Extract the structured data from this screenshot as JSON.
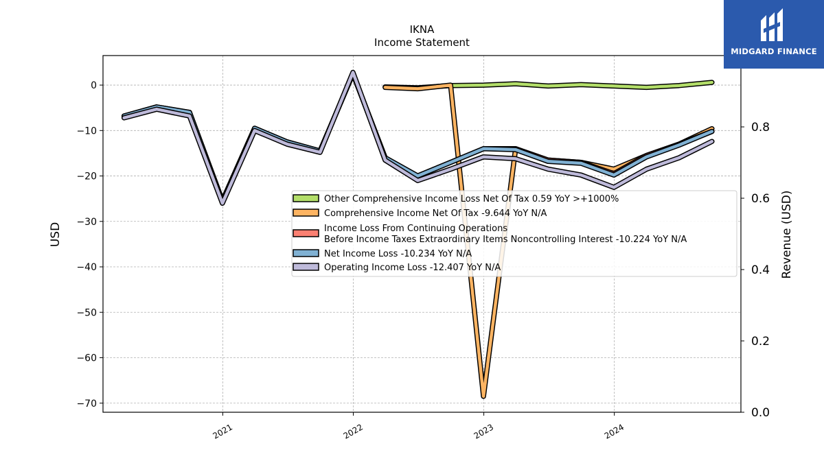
{
  "chart_data": {
    "type": "line",
    "title": "IKNA",
    "subtitle": "Income Statement",
    "ylabel": "USD",
    "ylabel_right": "Revenue (USD)",
    "ylim": [
      -72,
      6.5
    ],
    "ylim_right": [
      0,
      1.0
    ],
    "yticks": [
      0,
      -10,
      -20,
      -30,
      -40,
      -50,
      -60,
      -70
    ],
    "yticks_right": [
      0.0,
      0.2,
      0.4,
      0.6,
      0.8
    ],
    "xlim": [
      "2020-02-01",
      "2024-12-20"
    ],
    "xticks": [
      {
        "date": "2021-01-01",
        "label": "2021"
      },
      {
        "date": "2022-01-01",
        "label": "2022"
      },
      {
        "date": "2023-01-01",
        "label": "2023"
      },
      {
        "date": "2024-01-01",
        "label": "2024"
      }
    ],
    "grid": true,
    "legend_position": "center-right",
    "series": [
      {
        "name": "Other Comprehensive Income Loss Net Of Tax",
        "legend_label": "Other Comprehensive Income Loss Net Of Tax  0.59 YoY >+1000%",
        "color": "#b3de69",
        "x": [
          "2022-03-31",
          "2022-06-30",
          "2022-09-30",
          "2022-12-31",
          "2023-03-31",
          "2023-06-30",
          "2023-09-30",
          "2023-12-31",
          "2024-03-31",
          "2024-06-30",
          "2024-09-30"
        ],
        "y": [
          -0.4,
          -0.6,
          -0.1,
          0.0,
          0.3,
          -0.2,
          0.1,
          -0.2,
          -0.5,
          -0.1,
          0.6
        ]
      },
      {
        "name": "Comprehensive Income Net Of Tax",
        "legend_label": "Comprehensive Income Net Of Tax  -9.644 YoY N/A",
        "color": "#fdb462",
        "x": [
          "2022-03-31",
          "2022-06-30",
          "2022-09-30",
          "2022-12-31",
          "2023-03-31",
          "2023-06-30",
          "2023-09-30",
          "2023-12-31",
          "2024-03-31",
          "2024-06-30",
          "2024-09-30"
        ],
        "y": [
          -0.5,
          -0.8,
          0.0,
          -68.5,
          -14.0,
          -16.5,
          -17.0,
          -18.5,
          -15.5,
          -13.0,
          -9.6
        ]
      },
      {
        "name": "Income Loss From Continuing Operations Before Income Taxes Extraordinary Items Noncontrolling Interest",
        "legend_label": "Income Loss From Continuing Operations\nBefore Income Taxes Extraordinary Items Noncontrolling Interest  -10.224 YoY N/A",
        "color": "#fb8072",
        "x": [
          "2020-03-31",
          "2020-06-30",
          "2020-09-30",
          "2020-12-31",
          "2021-03-31",
          "2021-06-30",
          "2021-09-30",
          "2021-12-31",
          "2022-03-31",
          "2022-06-30",
          "2022-09-30",
          "2022-12-31",
          "2023-03-31",
          "2023-06-30",
          "2023-09-30",
          "2023-12-31",
          "2024-03-31",
          "2024-06-30",
          "2024-09-30"
        ],
        "y": [
          -6.8,
          -4.8,
          -6.0,
          -25.5,
          -9.5,
          -12.5,
          -14.5,
          2.5,
          -16.0,
          -20.0,
          -17.0,
          -14.0,
          -14.0,
          -16.5,
          -17.0,
          -19.5,
          -15.5,
          -13.0,
          -10.2
        ]
      },
      {
        "name": "Net Income Loss",
        "legend_label": "Net Income Loss  -10.234 YoY N/A",
        "color": "#80b1d3",
        "x": [
          "2020-03-31",
          "2020-06-30",
          "2020-09-30",
          "2020-12-31",
          "2021-03-31",
          "2021-06-30",
          "2021-09-30",
          "2021-12-31",
          "2022-03-31",
          "2022-06-30",
          "2022-09-30",
          "2022-12-31",
          "2023-03-31",
          "2023-06-30",
          "2023-09-30",
          "2023-12-31",
          "2024-03-31",
          "2024-06-30",
          "2024-09-30"
        ],
        "y": [
          -6.8,
          -4.8,
          -6.0,
          -25.5,
          -9.5,
          -12.5,
          -14.5,
          2.5,
          -16.0,
          -20.0,
          -17.0,
          -14.0,
          -14.2,
          -16.8,
          -17.2,
          -19.8,
          -15.8,
          -13.2,
          -10.2
        ]
      },
      {
        "name": "Operating Income Loss",
        "legend_label": "Operating Income Loss  -12.407 YoY N/A",
        "color": "#bebada",
        "x": [
          "2020-03-31",
          "2020-06-30",
          "2020-09-30",
          "2020-12-31",
          "2021-03-31",
          "2021-06-30",
          "2021-09-30",
          "2021-12-31",
          "2022-03-31",
          "2022-06-30",
          "2022-09-30",
          "2022-12-31",
          "2023-03-31",
          "2023-06-30",
          "2023-09-30",
          "2023-12-31",
          "2024-03-31",
          "2024-06-30",
          "2024-09-30"
        ],
        "y": [
          -7.2,
          -5.3,
          -6.8,
          -26.0,
          -10.0,
          -13.0,
          -14.8,
          2.8,
          -16.5,
          -21.0,
          -18.5,
          -15.8,
          -16.2,
          -18.5,
          -19.8,
          -22.5,
          -18.5,
          -16.0,
          -12.4
        ]
      }
    ]
  },
  "logo": {
    "text": "MIDGARD FINANCE",
    "background": "#2b5aad"
  }
}
